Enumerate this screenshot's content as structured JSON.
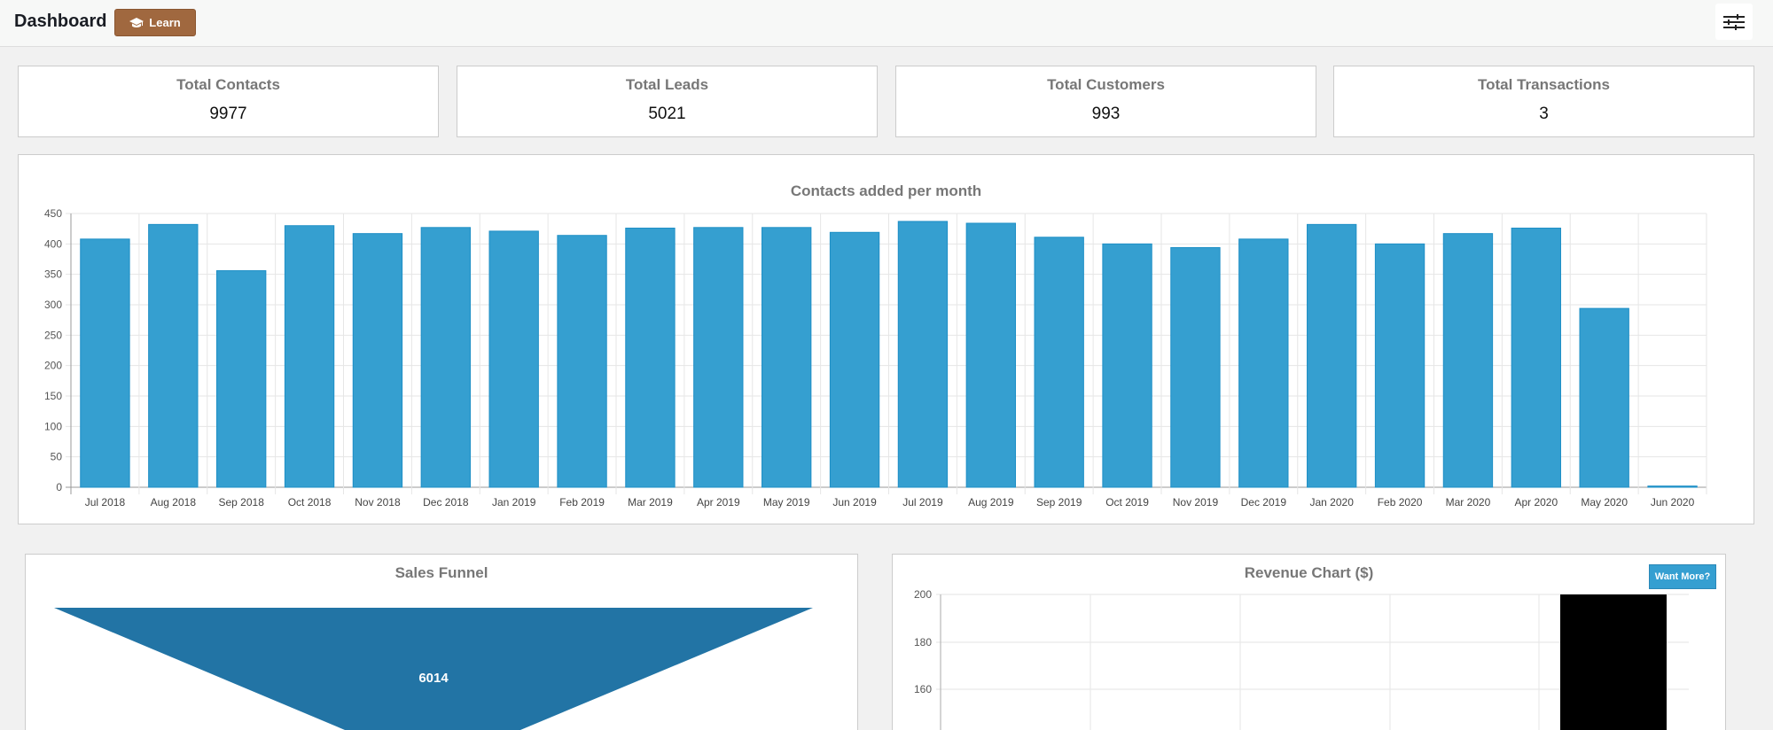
{
  "header": {
    "title": "Dashboard",
    "learn_label": "Learn",
    "learn_icon": "graduation-cap-icon",
    "settings_icon": "sliders-icon"
  },
  "stats": [
    {
      "label": "Total Contacts",
      "value": "9977"
    },
    {
      "label": "Total Leads",
      "value": "5021"
    },
    {
      "label": "Total Customers",
      "value": "993"
    },
    {
      "label": "Total Transactions",
      "value": "3"
    }
  ],
  "chart_data": [
    {
      "type": "bar",
      "title": "Contacts added per month",
      "color": "#359fd0",
      "categories": [
        "Jul 2018",
        "Aug 2018",
        "Sep 2018",
        "Oct 2018",
        "Nov 2018",
        "Dec 2018",
        "Jan 2019",
        "Feb 2019",
        "Mar 2019",
        "Apr 2019",
        "May 2019",
        "Jun 2019",
        "Jul 2019",
        "Aug 2019",
        "Sep 2019",
        "Oct 2019",
        "Nov 2019",
        "Dec 2019",
        "Jan 2020",
        "Feb 2020",
        "Mar 2020",
        "Apr 2020",
        "May 2020",
        "Jun 2020"
      ],
      "values": [
        408,
        432,
        356,
        430,
        417,
        427,
        421,
        414,
        426,
        427,
        427,
        419,
        437,
        434,
        411,
        400,
        394,
        408,
        432,
        400,
        417,
        426,
        294,
        2
      ],
      "ylim": [
        0,
        450
      ],
      "yticks": [
        0,
        50,
        100,
        150,
        200,
        250,
        300,
        350,
        400,
        450
      ],
      "grid": true
    },
    {
      "type": "funnel",
      "title": "Sales Funnel",
      "color": "#2274a5",
      "values": [
        6014
      ],
      "labels": [
        "6014"
      ]
    },
    {
      "type": "bar",
      "title": "Revenue Chart ($)",
      "color": "#000000",
      "yticks_visible": [
        200,
        180,
        160
      ],
      "button": "Want More?"
    }
  ]
}
